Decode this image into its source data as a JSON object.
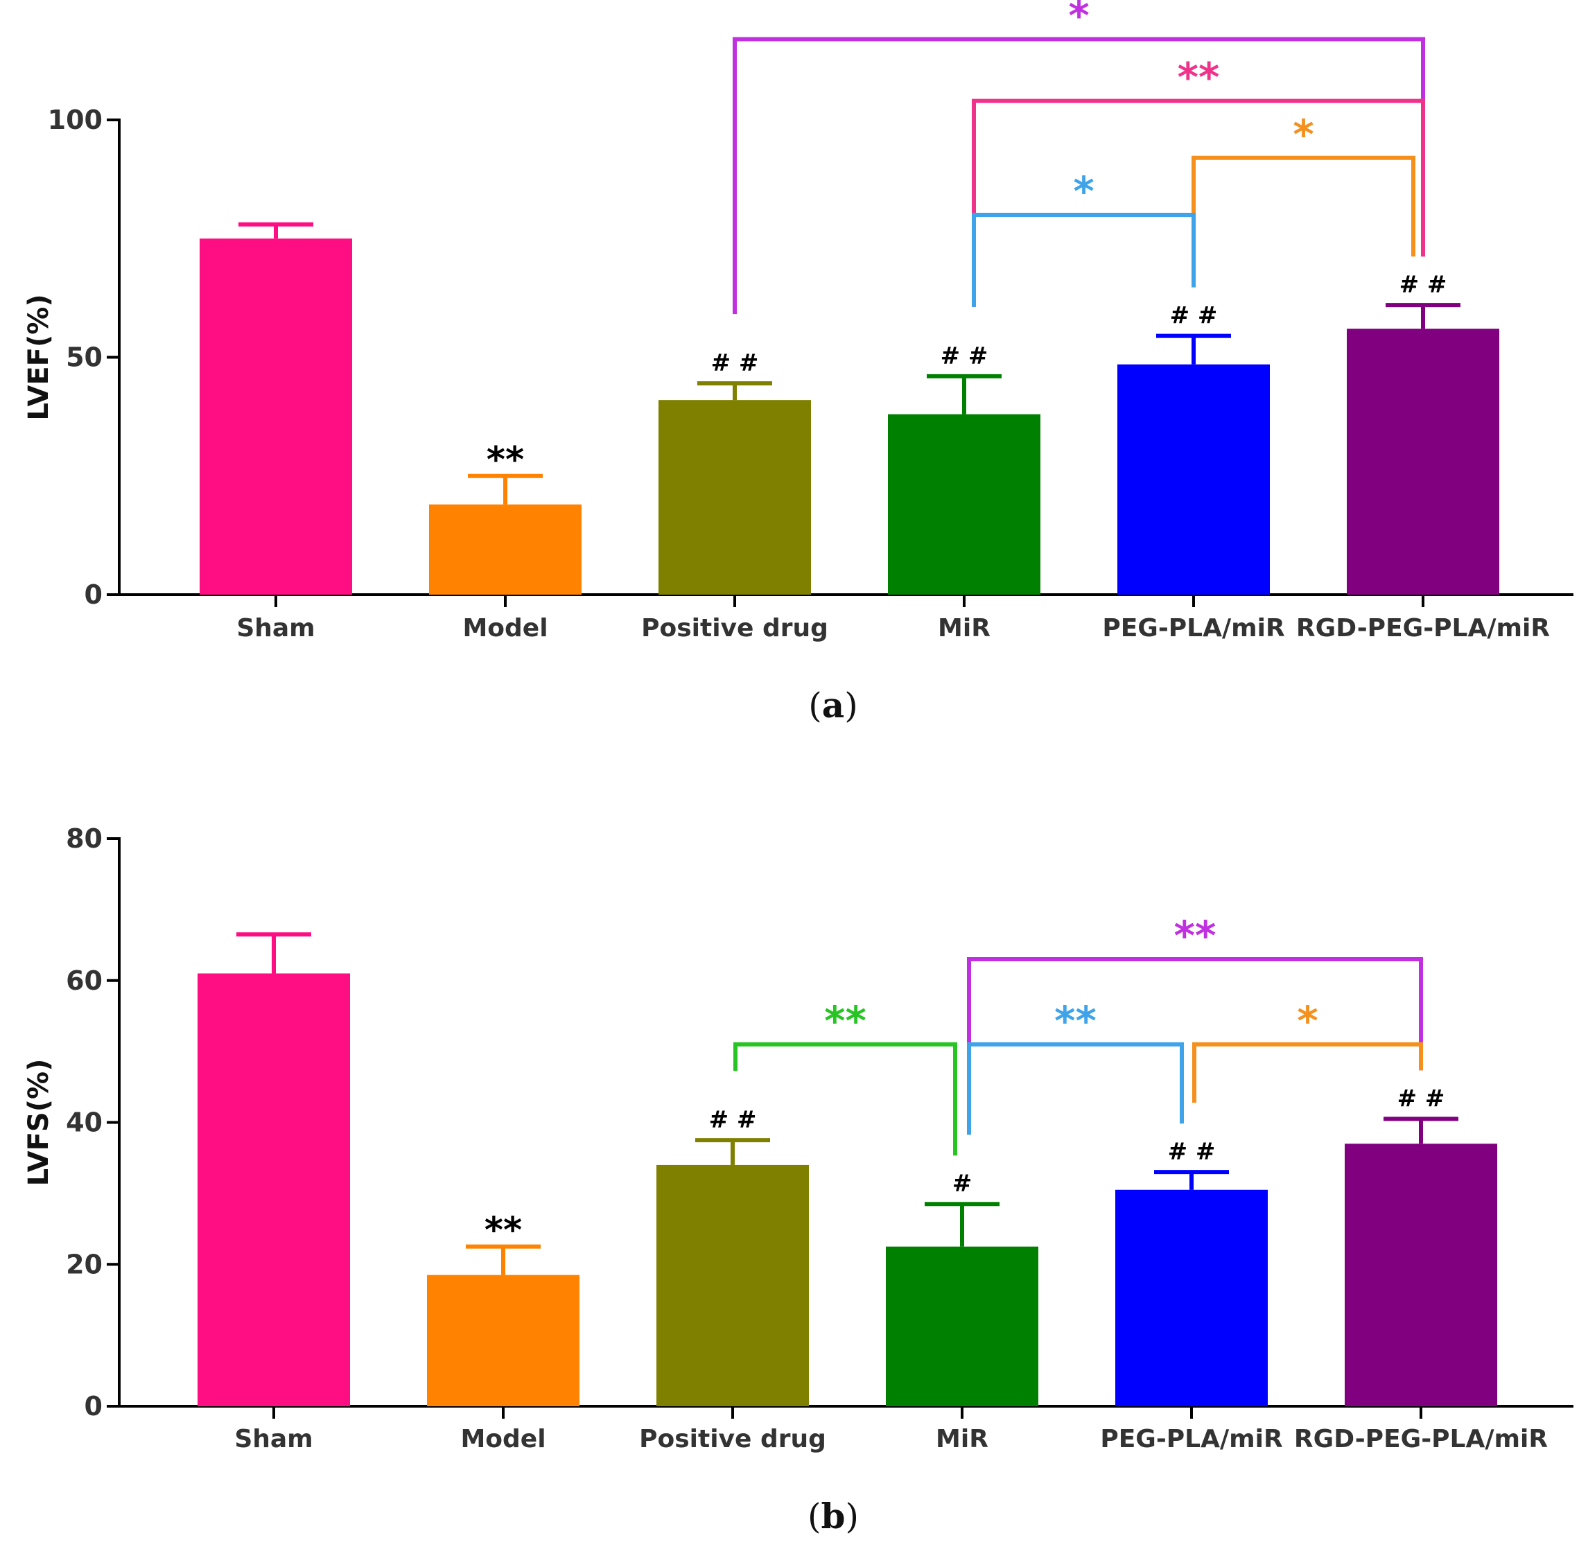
{
  "chart_data": [
    {
      "id": "a",
      "type": "bar",
      "panel_label": "a",
      "ylabel": "LVEF(%)",
      "xlabel": "",
      "ylim": [
        0,
        100
      ],
      "yticks": [
        0,
        50,
        100
      ],
      "categories": [
        "Sham",
        "Model",
        "Positive drug",
        "MiR",
        "PEG-PLA/miR",
        "RGD-PEG-PLA/miR"
      ],
      "values": [
        75,
        19,
        41,
        38,
        48.5,
        56
      ],
      "errors": [
        3,
        6,
        3.5,
        8,
        6,
        5
      ],
      "colors": [
        "#ff0e83",
        "#ff8300",
        "#808000",
        "#008000",
        "#0000ff",
        "#800080"
      ],
      "bar_annotations": [
        "",
        "**",
        "# #",
        "# #",
        "# #",
        "# #"
      ],
      "bar_annotation_colors": [
        "#000000",
        "#000000",
        "#000000",
        "#000000",
        "#000000",
        "#000000"
      ],
      "comparisons": [
        {
          "from": 2,
          "to": 5,
          "label": "*",
          "color": "#c130e0",
          "level": 117
        },
        {
          "from": 3,
          "to": 5,
          "label": "**",
          "color": "#f0338a",
          "level": 104
        },
        {
          "from": 4,
          "to": 5,
          "label": "*",
          "color": "#f5901d",
          "level": 92
        },
        {
          "from": 3,
          "to": 4,
          "label": "*",
          "color": "#3fa3ea",
          "level": 80
        }
      ]
    },
    {
      "id": "b",
      "type": "bar",
      "panel_label": "b",
      "ylabel": "LVFS(%)",
      "xlabel": "",
      "ylim": [
        0,
        80
      ],
      "yticks": [
        0,
        20,
        40,
        60,
        80
      ],
      "categories": [
        "Sham",
        "Model",
        "Positive drug",
        "MiR",
        "PEG-PLA/miR",
        "RGD-PEG-PLA/miR"
      ],
      "values": [
        61,
        18.5,
        34,
        22.5,
        30.5,
        37
      ],
      "errors": [
        5.5,
        4,
        3.5,
        6,
        2.5,
        3.5
      ],
      "colors": [
        "#ff0e83",
        "#ff8300",
        "#808000",
        "#008000",
        "#0000ff",
        "#800080"
      ],
      "bar_annotations": [
        "",
        "**",
        "# #",
        "#",
        "# #",
        "# #"
      ],
      "bar_annotation_colors": [
        "#000000",
        "#000000",
        "#000000",
        "#000000",
        "#000000",
        "#000000"
      ],
      "comparisons": [
        {
          "from": 3,
          "to": 5,
          "label": "**",
          "color": "#c130e0",
          "level": 63
        },
        {
          "from": 2,
          "to": 3,
          "label": "**",
          "color": "#27c424",
          "level": 51
        },
        {
          "from": 3,
          "to": 4,
          "label": "**",
          "color": "#3fa3ea",
          "level": 51
        },
        {
          "from": 4,
          "to": 5,
          "label": "*",
          "color": "#f5901d",
          "level": 51
        }
      ]
    }
  ]
}
